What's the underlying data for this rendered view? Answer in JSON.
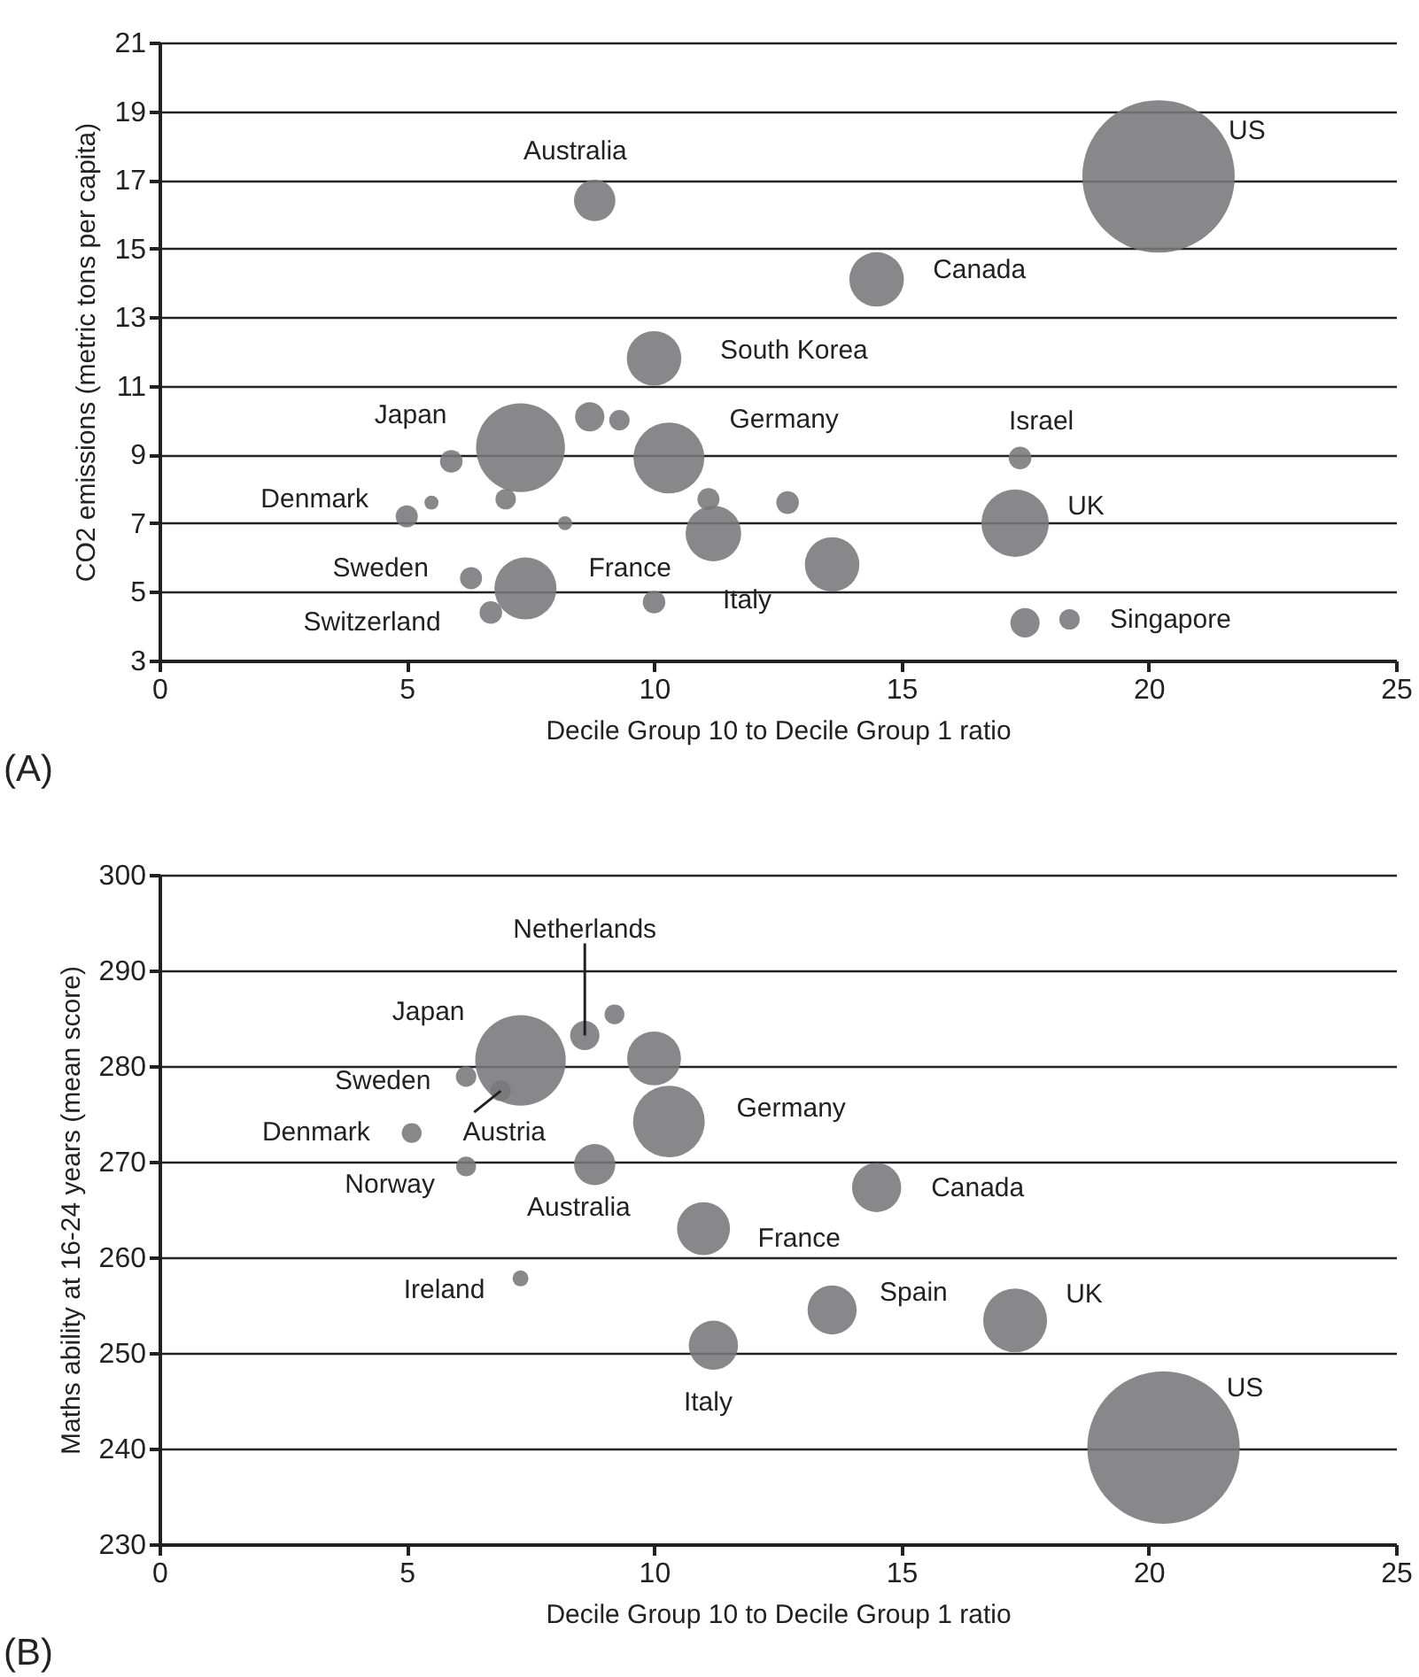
{
  "chart_data": [
    {
      "type": "bubble",
      "title": "(A)",
      "xlabel": "Decile Group 10 to Decile Group 1 ratio",
      "ylabel": "CO2 emissions (metric tons per capita)",
      "xlim": [
        0,
        25
      ],
      "xticks": [
        0,
        5,
        10,
        15,
        20,
        25
      ],
      "ylim": [
        3,
        21
      ],
      "yticks": [
        3,
        5,
        7,
        9,
        11,
        13,
        15,
        17,
        19,
        21
      ],
      "grid": "y",
      "marker": "circle",
      "series": [
        {
          "color": "#77787b",
          "x": [
            8.8,
            20.2,
            14.5,
            10.0,
            7.3,
            8.7,
            9.3,
            10.3,
            5.9,
            5.0,
            5.5,
            7.0,
            8.2,
            11.1,
            12.7,
            11.2,
            13.6,
            17.4,
            17.3,
            17.5,
            18.4,
            6.3,
            7.4,
            6.7,
            10.0
          ],
          "values": [
            16.4,
            17.1,
            14.1,
            11.8,
            9.2,
            10.1,
            10.0,
            8.9,
            8.8,
            7.2,
            7.6,
            7.7,
            7.0,
            7.7,
            7.6,
            6.7,
            5.8,
            8.9,
            7.0,
            4.1,
            4.2,
            5.4,
            5.1,
            4.4,
            4.7
          ],
          "sizes": [
            0.074,
            1,
            0.128,
            0.128,
            0.34,
            0.037,
            0.018,
            0.216,
            0.022,
            0.021,
            0.0085,
            0.018,
            0.0085,
            0.021,
            0.022,
            0.133,
            0.128,
            0.022,
            0.196,
            0.037,
            0.018,
            0.021,
            0.166,
            0.022,
            0.022
          ]
        }
      ],
      "annotations": [
        {
          "text": "Australia",
          "x": 8.8,
          "y": 16.4
        },
        {
          "text": "US",
          "x": 20.2,
          "y": 17.1
        },
        {
          "text": "Canada",
          "x": 14.5,
          "y": 14.1
        },
        {
          "text": "South Korea",
          "x": 10.0,
          "y": 11.8
        },
        {
          "text": "Japan",
          "x": 7.3,
          "y": 9.2
        },
        {
          "text": "Germany",
          "x": 10.3,
          "y": 8.9
        },
        {
          "text": "Israel",
          "x": 17.4,
          "y": 8.9
        },
        {
          "text": "Denmark",
          "x": 5.0,
          "y": 7.2
        },
        {
          "text": "UK",
          "x": 17.3,
          "y": 7.0
        },
        {
          "text": "Sweden",
          "x": 6.3,
          "y": 5.4
        },
        {
          "text": "France",
          "x": 7.4,
          "y": 5.1
        },
        {
          "text": "Italy",
          "x": 11.2,
          "y": 6.7
        },
        {
          "text": "Switzerland",
          "x": 6.7,
          "y": 4.4
        },
        {
          "text": "Singapore",
          "x": 18.4,
          "y": 4.2
        }
      ]
    },
    {
      "type": "bubble",
      "title": "(B)",
      "xlabel": "Decile Group 10 to Decile Group 1 ratio",
      "ylabel": "Maths ability at 16-24 years (mean score)",
      "xlim": [
        0,
        25
      ],
      "xticks": [
        0,
        5,
        10,
        15,
        20,
        25
      ],
      "ylim": [
        230,
        300
      ],
      "yticks": [
        230,
        240,
        250,
        260,
        270,
        280,
        290,
        300
      ],
      "grid": "y",
      "marker": "circle",
      "series": [
        {
          "color": "#77787b",
          "x": [
            7.3,
            8.6,
            9.2,
            10.0,
            10.3,
            6.2,
            6.9,
            5.1,
            6.2,
            8.8,
            7.3,
            11.0,
            11.2,
            14.5,
            13.6,
            17.3,
            20.3
          ],
          "values": [
            280.6,
            283.2,
            285.4,
            280.8,
            274.2,
            278.9,
            277.4,
            273.0,
            269.5,
            269.7,
            257.8,
            263.0,
            250.8,
            267.3,
            254.5,
            253.4,
            240.1
          ],
          "sizes": [
            0.353,
            0.037,
            0.017,
            0.125,
            0.221,
            0.018,
            0.018,
            0.017,
            0.017,
            0.073,
            0.011,
            0.121,
            0.104,
            0.104,
            0.104,
            0.176,
            1
          ]
        }
      ],
      "annotations": [
        {
          "text": "Netherlands",
          "x": 8.6,
          "y": 283.2
        },
        {
          "text": "Japan",
          "x": 7.3,
          "y": 280.6
        },
        {
          "text": "Sweden",
          "x": 6.2,
          "y": 278.9
        },
        {
          "text": "Denmark",
          "x": 5.1,
          "y": 273.0
        },
        {
          "text": "Austria",
          "x": 6.9,
          "y": 277.4
        },
        {
          "text": "Norway",
          "x": 6.2,
          "y": 269.5
        },
        {
          "text": "Australia",
          "x": 8.8,
          "y": 269.7
        },
        {
          "text": "Ireland",
          "x": 7.3,
          "y": 257.8
        },
        {
          "text": "Italy",
          "x": 11.2,
          "y": 250.8
        },
        {
          "text": "Germany",
          "x": 10.3,
          "y": 274.2
        },
        {
          "text": "Canada",
          "x": 14.5,
          "y": 267.3
        },
        {
          "text": "France",
          "x": 11.0,
          "y": 263.0
        },
        {
          "text": "Spain",
          "x": 13.6,
          "y": 254.5
        },
        {
          "text": "UK",
          "x": 17.3,
          "y": 253.4
        },
        {
          "text": "US",
          "x": 20.3,
          "y": 240.1
        }
      ]
    }
  ]
}
